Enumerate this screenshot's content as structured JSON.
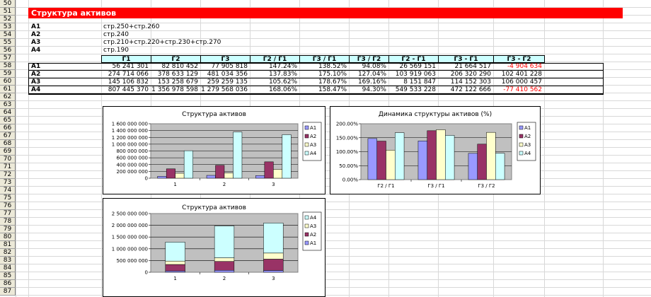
{
  "sheet": {
    "row_numbers": [
      "50",
      "51",
      "52",
      "53",
      "54",
      "55",
      "56",
      "57",
      "58",
      "59",
      "60",
      "61",
      "62",
      "63",
      "64",
      "65",
      "66",
      "67",
      "68",
      "69",
      "70",
      "71",
      "72",
      "73",
      "74",
      "75",
      "76",
      "77",
      "78",
      "79",
      "80",
      "81",
      "82",
      "83",
      "84",
      "85",
      "86",
      "87"
    ],
    "title": "Структура активов",
    "definitions": [
      {
        "label": "А1",
        "formula": "стр.250+стр.260"
      },
      {
        "label": "А2",
        "formula": "стр.240"
      },
      {
        "label": "А3",
        "formula": "стр.210+стр.220+стр.230+стр.270"
      },
      {
        "label": "А4",
        "formula": "стр.190"
      }
    ],
    "table": {
      "headers": [
        "Г1",
        "Г2",
        "Г3",
        "Г2 / Г1",
        "Г3 / Г1",
        "Г3 / Г2",
        "Г2 - Г1",
        "Г3 - Г1",
        "Г3 - Г2"
      ],
      "rows": [
        {
          "label": "А1",
          "cells": [
            "56 241 301",
            "82 810 452",
            "77 905 818",
            "147.24%",
            "138.52%",
            "94.08%",
            "26 569 151",
            "21 664 517",
            "-4 904 634"
          ],
          "neg": [
            false,
            false,
            false,
            false,
            false,
            false,
            false,
            false,
            true
          ]
        },
        {
          "label": "А2",
          "cells": [
            "274 714 066",
            "378 633 129",
            "481 034 356",
            "137.83%",
            "175.10%",
            "127.04%",
            "103 919 063",
            "206 320 290",
            "102 401 228"
          ],
          "neg": [
            false,
            false,
            false,
            false,
            false,
            false,
            false,
            false,
            false
          ]
        },
        {
          "label": "А3",
          "cells": [
            "145 106 832",
            "153 258 679",
            "259 259 135",
            "105.62%",
            "178.67%",
            "169.16%",
            "8 151 847",
            "114 152 303",
            "106 000 457"
          ],
          "neg": [
            false,
            false,
            false,
            false,
            false,
            false,
            false,
            false,
            false
          ]
        },
        {
          "label": "А4",
          "cells": [
            "807 445 370",
            "1 356 978 598",
            "1 279 568 036",
            "168.06%",
            "158.47%",
            "94.30%",
            "549 533 228",
            "472 122 666",
            "-77 410 562"
          ],
          "neg": [
            false,
            false,
            false,
            false,
            false,
            false,
            false,
            false,
            true
          ]
        }
      ]
    }
  },
  "colors": {
    "a1": "#9999ff",
    "a2": "#993366",
    "a3": "#ffffcc",
    "a4": "#ccffff",
    "plot_bg": "#c0c0c0",
    "title_bg": "#ff0000",
    "header_bg": "#ccffff",
    "negative": "#ff0000"
  },
  "chart_data": [
    {
      "type": "bar",
      "title": "Структура активов",
      "categories": [
        "1",
        "2",
        "3"
      ],
      "ylim": [
        0,
        1600000000
      ],
      "yticks": [
        "0",
        "200 000 000",
        "400 000 000",
        "600 000 000",
        "800 000 000",
        "1 000 000 000",
        "1 200 000 000",
        "1 400 000 000",
        "1 600 000 000"
      ],
      "series": [
        {
          "name": "А1",
          "values": [
            56241301,
            82810452,
            77905818
          ]
        },
        {
          "name": "А2",
          "values": [
            274714066,
            378633129,
            481034356
          ]
        },
        {
          "name": "А3",
          "values": [
            145106832,
            153258679,
            259259135
          ]
        },
        {
          "name": "А4",
          "values": [
            807445370,
            1356978598,
            1279568036
          ]
        }
      ],
      "legend": "right",
      "grid": true
    },
    {
      "type": "bar",
      "title": "Динамика структуры активов (%)",
      "categories": [
        "Г2 / Г1",
        "Г3 / Г1",
        "Г3 / Г2"
      ],
      "ylim": [
        0,
        200
      ],
      "yticks": [
        "0.00%",
        "50.00%",
        "100.00%",
        "150.00%",
        "200.00%"
      ],
      "series": [
        {
          "name": "А1",
          "values": [
            147.24,
            138.52,
            94.08
          ]
        },
        {
          "name": "А2",
          "values": [
            137.83,
            175.1,
            127.04
          ]
        },
        {
          "name": "А3",
          "values": [
            105.62,
            178.67,
            169.16
          ]
        },
        {
          "name": "А4",
          "values": [
            168.06,
            158.47,
            94.3
          ]
        }
      ],
      "legend": "right",
      "grid": true
    },
    {
      "type": "bar",
      "stacked": true,
      "title": "Структура активов",
      "categories": [
        "1",
        "2",
        "3"
      ],
      "ylim": [
        0,
        2500000000
      ],
      "yticks": [
        "0",
        "500 000 000",
        "1 000 000 000",
        "1 500 000 000",
        "2 000 000 000",
        "2 500 000 000"
      ],
      "series": [
        {
          "name": "А1",
          "values": [
            56241301,
            82810452,
            77905818
          ]
        },
        {
          "name": "А2",
          "values": [
            274714066,
            378633129,
            481034356
          ]
        },
        {
          "name": "А3",
          "values": [
            145106832,
            153258679,
            259259135
          ]
        },
        {
          "name": "А4",
          "values": [
            807445370,
            1356978598,
            1279568036
          ]
        }
      ],
      "legend": "right",
      "grid": true
    }
  ]
}
